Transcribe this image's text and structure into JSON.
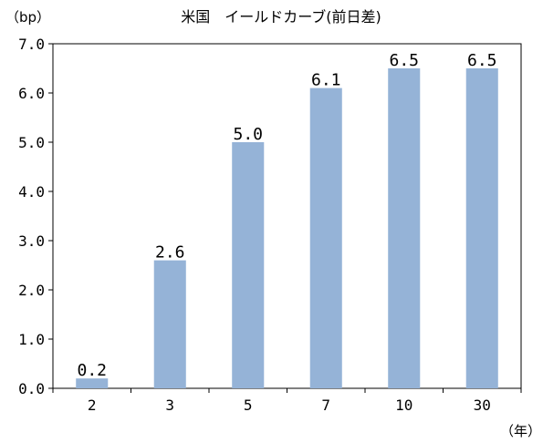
{
  "chart_data": {
    "type": "bar",
    "title": "米国　イールドカーブ(前日差)",
    "y_unit_label": "（bp）",
    "x_unit_label": "（年）",
    "categories": [
      "2",
      "3",
      "5",
      "7",
      "10",
      "30"
    ],
    "values": [
      0.2,
      2.6,
      5.0,
      6.1,
      6.5,
      6.5
    ],
    "data_labels": [
      "0.2",
      "2.6",
      "5.0",
      "6.1",
      "6.5",
      "6.5"
    ],
    "y_ticks": [
      "0.0",
      "1.0",
      "2.0",
      "3.0",
      "4.0",
      "5.0",
      "6.0",
      "7.0"
    ],
    "ylim": [
      0,
      7
    ],
    "grid": false,
    "legend": "none",
    "bar_color": "#95b3d7",
    "axis_color": "#000000"
  }
}
